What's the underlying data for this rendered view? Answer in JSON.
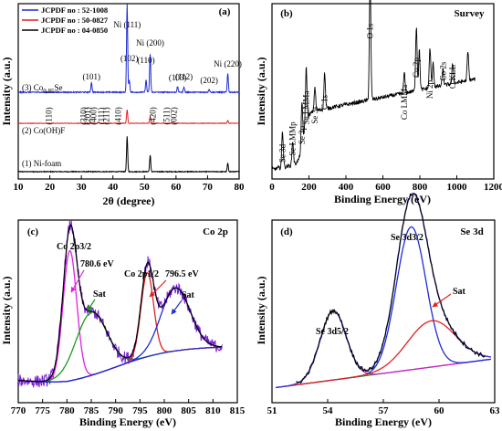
{
  "chart_data": [
    {
      "panel": "a",
      "type": "line",
      "label": "(a)",
      "xlabel": "2θ (degree)",
      "ylabel": "Intensity (a.u.)",
      "xlim": [
        10,
        80
      ],
      "xticks": [
        10,
        20,
        30,
        40,
        50,
        60,
        70,
        80
      ],
      "legend": {
        "placement": "top-left",
        "entries": [
          {
            "text": "JCPDF no : 52-1008",
            "color": "#1f2bd6"
          },
          {
            "text": "JCPDF no : 50-0827",
            "color": "#e02020"
          },
          {
            "text": "JCPDF no : 04-0850",
            "color": "#000000"
          }
        ]
      },
      "series": [
        {
          "name": "(1) Ni-foam",
          "color": "#000000",
          "offset": 0,
          "peaks": [
            {
              "x": 44.5,
              "h": 0.85
            },
            {
              "x": 51.8,
              "h": 0.4
            },
            {
              "x": 76.4,
              "h": 0.2
            }
          ]
        },
        {
          "name": "(2) Co(OH)F",
          "color": "#e02020",
          "offset": 1,
          "peaks": [
            {
              "x": 44.5,
              "h": 0.6
            },
            {
              "x": 51.8,
              "h": 0.28
            },
            {
              "x": 76.4,
              "h": 0.12
            },
            {
              "x": 33.0,
              "h": 0.05
            },
            {
              "x": 35.5,
              "h": 0.05
            },
            {
              "x": 59.0,
              "h": 0.05
            }
          ]
        },
        {
          "name": "(3) Co0.85Se",
          "color": "#1f2bd6",
          "offset": 2,
          "peaks": [
            {
              "x": 44.5,
              "h": 1.6
            },
            {
              "x": 51.8,
              "h": 0.7
            },
            {
              "x": 76.4,
              "h": 0.35
            },
            {
              "x": 33.2,
              "h": 0.18
            },
            {
              "x": 45.2,
              "h": 0.22
            },
            {
              "x": 50.5,
              "h": 0.22
            },
            {
              "x": 60.5,
              "h": 0.1
            },
            {
              "x": 62.5,
              "h": 0.1
            },
            {
              "x": 70.5,
              "h": 0.06
            }
          ]
        }
      ],
      "series_labels": [
        {
          "text": "(1) Ni-foam",
          "series": 0
        },
        {
          "text": "(2) Co(OH)F",
          "series": 1
        }
      ],
      "series3_label": {
        "main": "(3) Co",
        "sub": "0.85",
        "tail": "Se"
      },
      "annotations": [
        {
          "text": "Ni (111)",
          "x": 44.5
        },
        {
          "text": "Ni (200)",
          "x": 51.8
        },
        {
          "text": "Ni (220)",
          "x": 76.4
        },
        {
          "text": "(101)",
          "x": 33.2
        },
        {
          "text": "(102)",
          "x": 45.2
        },
        {
          "text": "(110)",
          "x": 50.5
        },
        {
          "text": "(103)",
          "x": 60.5
        },
        {
          "text": "(112)",
          "x": 62.5
        },
        {
          "text": "(202)",
          "x": 70.5
        }
      ],
      "red_annotations": [
        {
          "text": "(110)",
          "x": 20.5
        },
        {
          "text": "(310)",
          "x": 31.5
        },
        {
          "text": "(201)",
          "x": 32.8
        },
        {
          "text": "(400)",
          "x": 34.8
        },
        {
          "text": "(111)",
          "x": 37.2
        },
        {
          "text": "(211)",
          "x": 38.8
        },
        {
          "text": "(410)",
          "x": 42.5
        },
        {
          "text": "(420)",
          "x": 53.5
        },
        {
          "text": "(511)",
          "x": 57.8
        },
        {
          "text": "(002)",
          "x": 60.2
        }
      ]
    },
    {
      "panel": "b",
      "type": "line",
      "label": "(b)",
      "title": "Survey",
      "xlabel": "Binding Energy (eV)",
      "ylabel": "Intensity (a.u.)",
      "xlim": [
        0,
        1200
      ],
      "xticks": [
        0,
        200,
        400,
        600,
        800,
        1000,
        1200
      ],
      "color": "#000000",
      "peaks": [
        {
          "x": 57,
          "h": 0.18
        },
        {
          "x": 112,
          "h": 0.12
        },
        {
          "x": 162,
          "h": 0.22
        },
        {
          "x": 185,
          "h": 0.28
        },
        {
          "x": 232,
          "h": 0.12
        },
        {
          "x": 285,
          "h": 0.18
        },
        {
          "x": 531,
          "h": 0.62
        },
        {
          "x": 716,
          "h": 0.1
        },
        {
          "x": 781,
          "h": 0.32
        },
        {
          "x": 797,
          "h": 0.2
        },
        {
          "x": 855,
          "h": 0.2
        },
        {
          "x": 872,
          "h": 0.12
        },
        {
          "x": 925,
          "h": 0.08
        },
        {
          "x": 978,
          "h": 0.1
        },
        {
          "x": 1060,
          "h": 0.14
        }
      ],
      "annotations": [
        {
          "text": "Se 3d",
          "x": 57
        },
        {
          "text": "Se LMMp",
          "x": 112
        },
        {
          "text": "Se 3p",
          "x": 162
        },
        {
          "text": "Se LMMa",
          "x": 185
        },
        {
          "text": "Se 3s",
          "x": 232
        },
        {
          "text": "C 1s",
          "x": 285
        },
        {
          "text": "O 1s",
          "x": 531
        },
        {
          "text": "Co LMMa",
          "x": 716
        },
        {
          "text": "Co 2p",
          "x": 781
        },
        {
          "text": "Ni 2p",
          "x": 855
        },
        {
          "text": "Co 2s",
          "x": 925
        },
        {
          "text": "O KLL",
          "x": 978
        }
      ]
    },
    {
      "panel": "c",
      "type": "line",
      "label": "(c)",
      "title": "Co 2p",
      "xlabel": "Binding Energy (eV)",
      "ylabel": "Intensity (a.u.)",
      "xlim": [
        770,
        815
      ],
      "xticks": [
        770,
        775,
        780,
        785,
        790,
        795,
        800,
        805,
        810,
        815
      ],
      "series": [
        {
          "name": "raw",
          "color": "#7a1fd6"
        },
        {
          "name": "fit",
          "color": "#000000"
        },
        {
          "name": "Co 2p3/2",
          "color": "#e020e0"
        },
        {
          "name": "Sat",
          "color": "#1a9a1a"
        },
        {
          "name": "Co 2p1/2",
          "color": "#e02020"
        },
        {
          "name": "Sat2",
          "color": "#1f2bd6"
        },
        {
          "name": "background",
          "color": "#1f2bd6"
        }
      ],
      "components": [
        {
          "center": 780.6,
          "amp": 0.62,
          "width": 1.4,
          "series": 2
        },
        {
          "center": 785.0,
          "amp": 0.3,
          "width": 3.2,
          "series": 3
        },
        {
          "center": 796.5,
          "amp": 0.4,
          "width": 1.3,
          "series": 4
        },
        {
          "center": 802.3,
          "amp": 0.3,
          "width": 3.0,
          "series": 5
        }
      ],
      "annotations": [
        {
          "text": "Co 2p3/2"
        },
        {
          "text": "780.6 eV"
        },
        {
          "text": "Sat"
        },
        {
          "text": "Co 2p1/2"
        },
        {
          "text": "796.5 eV"
        },
        {
          "text": "Sat"
        }
      ]
    },
    {
      "panel": "d",
      "type": "line",
      "label": "(d)",
      "title": "Se 3d",
      "xlabel": "Binding Energy (eV)",
      "ylabel": "Intensity (a.u.)",
      "xlim": [
        51,
        63
      ],
      "xticks": [
        51,
        54,
        57,
        60,
        63
      ],
      "series": [
        {
          "name": "raw",
          "color": "#000000"
        },
        {
          "name": "fit",
          "color": "#3a3ad6"
        },
        {
          "name": "Se 3d5/2",
          "color": "#d020d0"
        },
        {
          "name": "Se 3d3/2",
          "color": "#1f2bd6"
        },
        {
          "name": "Sat",
          "color": "#e02020"
        },
        {
          "name": "background",
          "color": "#1a9a1a"
        }
      ],
      "components": [
        {
          "center": 54.3,
          "amp": 0.33,
          "width": 0.7,
          "series": 2
        },
        {
          "center": 58.5,
          "amp": 0.68,
          "width": 0.8,
          "series": 3
        },
        {
          "center": 59.6,
          "amp": 0.22,
          "width": 1.3,
          "series": 4
        }
      ],
      "annotations": [
        {
          "text": "Se 3d5/2"
        },
        {
          "text": "Se 3d3/2"
        },
        {
          "text": "Sat"
        }
      ]
    }
  ]
}
